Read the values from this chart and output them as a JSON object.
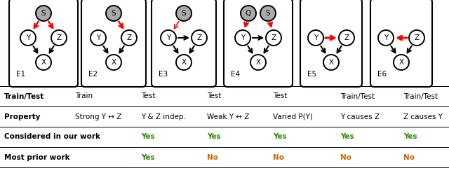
{
  "background_color": "#ffffff",
  "box_labels": [
    "E1",
    "E2",
    "E3",
    "E4",
    "E5",
    "E6"
  ],
  "green_color": "#2d8a00",
  "orange_color": "#cc6600",
  "black_color": "#000000",
  "table_data": {
    "row_labels": [
      "Train/Test",
      "Property",
      "Considered in our work",
      "Most prior work"
    ],
    "col_vals": [
      [
        "Train",
        "Strong Y ↔ Z",
        "",
        ""
      ],
      [
        "Test",
        "Y & Z indep.",
        "Yes",
        "Yes"
      ],
      [
        "Test",
        "Weak Y ↔ Z",
        "Yes",
        "No"
      ],
      [
        "Test",
        "Varied P(Y)",
        "Yes",
        "No"
      ],
      [
        "Train/Test",
        "Y causes Z",
        "Yes",
        "No"
      ],
      [
        "Train/Test",
        "Z causes Y",
        "Yes",
        "No"
      ]
    ]
  }
}
